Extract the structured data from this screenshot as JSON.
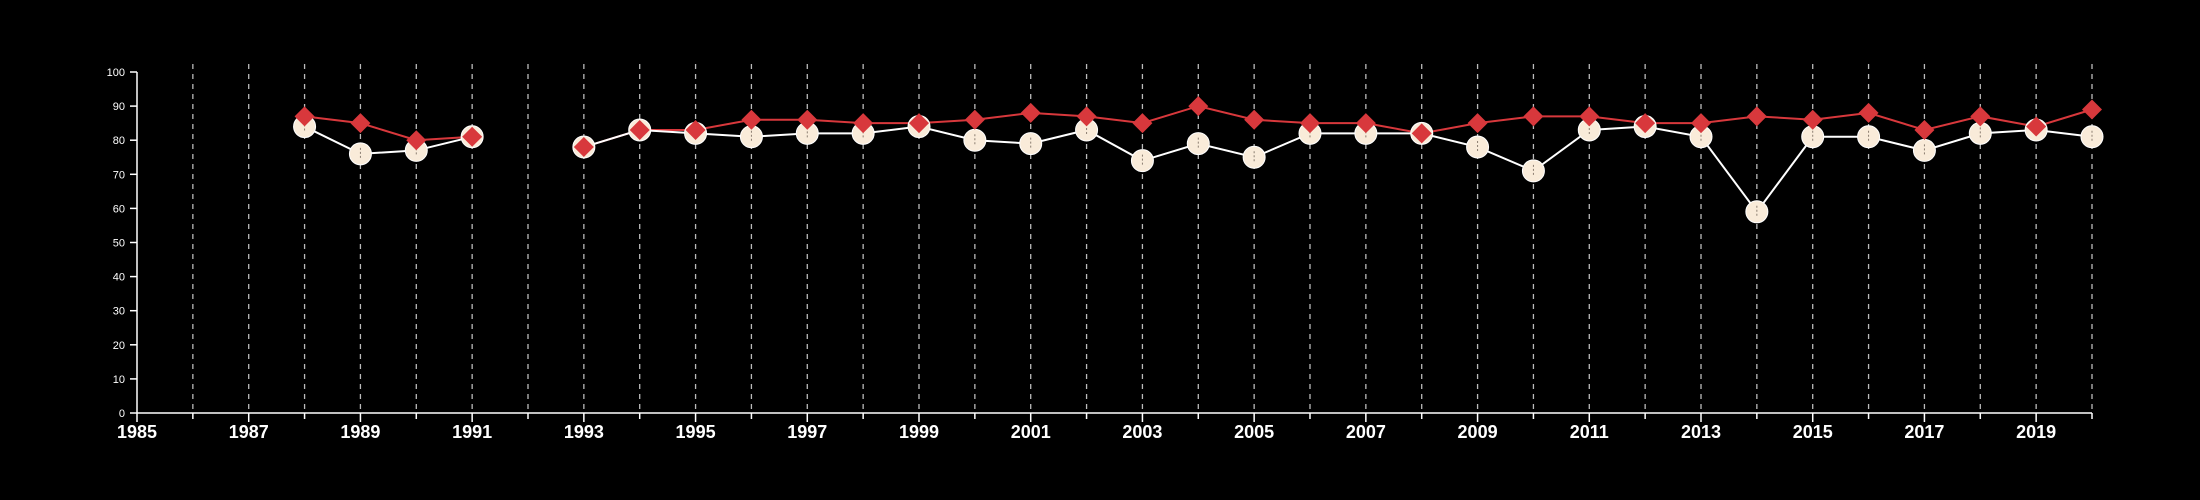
{
  "chart_data": {
    "type": "line",
    "xlim": [
      1985,
      2020
    ],
    "ylim": [
      0,
      100
    ],
    "yticks": [
      0,
      10,
      20,
      30,
      40,
      50,
      60,
      70,
      80,
      90,
      100
    ],
    "xticks": [
      1985,
      1987,
      1989,
      1991,
      1993,
      1995,
      1997,
      1999,
      2001,
      2003,
      2005,
      2007,
      2009,
      2011,
      2013,
      2015,
      2017,
      2019
    ],
    "vertical_dashed_gridlines": "every year",
    "legend": "none",
    "colors": {
      "background": "#000000",
      "axis": "#ffffff",
      "grid": "#bbbbbb",
      "series_red": "#d8383c",
      "series_cream": "#f9ebd9",
      "series_cream_line": "#ffffff"
    },
    "series": [
      {
        "marker": "diamond",
        "x": [
          1988,
          1989,
          1990,
          1991,
          1993,
          1994,
          1995,
          1996,
          1997,
          1998,
          1999,
          2000,
          2001,
          2002,
          2003,
          2004,
          2005,
          2006,
          2007,
          2008,
          2009,
          2010,
          2011,
          2012,
          2013,
          2014,
          2015,
          2016,
          2017,
          2018,
          2019,
          2020
        ],
        "values": [
          87,
          85,
          80,
          81,
          78,
          83,
          83,
          86,
          86,
          85,
          85,
          86,
          88,
          87,
          85,
          90,
          86,
          85,
          85,
          82,
          85,
          87,
          87,
          85,
          85,
          87,
          86,
          88,
          83,
          87,
          84,
          89
        ]
      },
      {
        "marker": "circle",
        "x": [
          1988,
          1989,
          1990,
          1991,
          1993,
          1994,
          1995,
          1996,
          1997,
          1998,
          1999,
          2000,
          2001,
          2002,
          2003,
          2004,
          2005,
          2006,
          2007,
          2008,
          2009,
          2010,
          2011,
          2012,
          2013,
          2014,
          2015,
          2016,
          2017,
          2018,
          2019,
          2020
        ],
        "values": [
          84,
          76,
          77,
          81,
          78,
          83,
          82,
          81,
          82,
          82,
          84,
          80,
          79,
          83,
          74,
          79,
          75,
          82,
          82,
          82,
          78,
          71,
          83,
          84,
          81,
          59,
          81,
          81,
          77,
          82,
          83,
          81
        ]
      }
    ]
  }
}
